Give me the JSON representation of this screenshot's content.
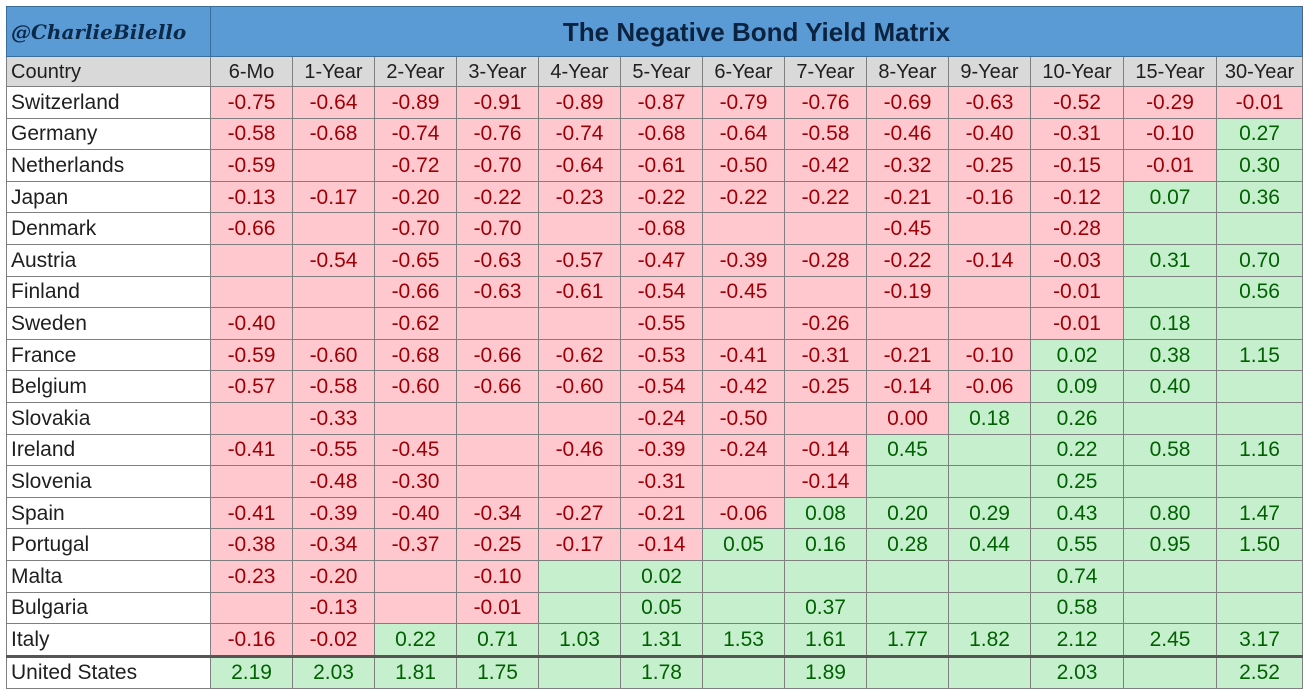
{
  "header": {
    "handle": "@CharlieBilello",
    "title": "The Negative Bond Yield Matrix"
  },
  "colors": {
    "title_bg": "#5b9bd5",
    "header_bg": "#d9d9d9",
    "negative_fill": "#ffc7ce",
    "negative_text": "#9c0006",
    "positive_fill": "#c6efce",
    "positive_text": "#006100"
  },
  "chart_data": {
    "type": "heatmap",
    "title": "The Negative Bond Yield Matrix",
    "row_header": "Country",
    "columns": [
      "6-Mo",
      "1-Year",
      "2-Year",
      "3-Year",
      "4-Year",
      "5-Year",
      "6-Year",
      "7-Year",
      "8-Year",
      "9-Year",
      "10-Year",
      "15-Year",
      "30-Year"
    ],
    "rows": [
      {
        "country": "Switzerland",
        "values": [
          "-0.75",
          "-0.64",
          "-0.89",
          "-0.91",
          "-0.89",
          "-0.87",
          "-0.79",
          "-0.76",
          "-0.69",
          "-0.63",
          "-0.52",
          "-0.29",
          "-0.01"
        ],
        "fills": [
          "n",
          "n",
          "n",
          "n",
          "n",
          "n",
          "n",
          "n",
          "n",
          "n",
          "n",
          "n",
          "n"
        ]
      },
      {
        "country": "Germany",
        "values": [
          "-0.58",
          "-0.68",
          "-0.74",
          "-0.76",
          "-0.74",
          "-0.68",
          "-0.64",
          "-0.58",
          "-0.46",
          "-0.40",
          "-0.31",
          "-0.10",
          "0.27"
        ],
        "fills": [
          "n",
          "n",
          "n",
          "n",
          "n",
          "n",
          "n",
          "n",
          "n",
          "n",
          "n",
          "n",
          "p"
        ]
      },
      {
        "country": "Netherlands",
        "values": [
          "-0.59",
          "",
          "-0.72",
          "-0.70",
          "-0.64",
          "-0.61",
          "-0.50",
          "-0.42",
          "-0.32",
          "-0.25",
          "-0.15",
          "-0.01",
          "0.30"
        ],
        "fills": [
          "n",
          "n",
          "n",
          "n",
          "n",
          "n",
          "n",
          "n",
          "n",
          "n",
          "n",
          "n",
          "p"
        ]
      },
      {
        "country": "Japan",
        "values": [
          "-0.13",
          "-0.17",
          "-0.20",
          "-0.22",
          "-0.23",
          "-0.22",
          "-0.22",
          "-0.22",
          "-0.21",
          "-0.16",
          "-0.12",
          "0.07",
          "0.36"
        ],
        "fills": [
          "n",
          "n",
          "n",
          "n",
          "n",
          "n",
          "n",
          "n",
          "n",
          "n",
          "n",
          "p",
          "p"
        ]
      },
      {
        "country": "Denmark",
        "values": [
          "-0.66",
          "",
          "-0.70",
          "-0.70",
          "",
          "-0.68",
          "",
          "",
          "-0.45",
          "",
          "-0.28",
          "",
          ""
        ],
        "fills": [
          "n",
          "n",
          "n",
          "n",
          "n",
          "n",
          "n",
          "n",
          "n",
          "n",
          "n",
          "p",
          "p"
        ]
      },
      {
        "country": "Austria",
        "values": [
          "",
          "-0.54",
          "-0.65",
          "-0.63",
          "-0.57",
          "-0.47",
          "-0.39",
          "-0.28",
          "-0.22",
          "-0.14",
          "-0.03",
          "0.31",
          "0.70"
        ],
        "fills": [
          "n",
          "n",
          "n",
          "n",
          "n",
          "n",
          "n",
          "n",
          "n",
          "n",
          "n",
          "p",
          "p"
        ]
      },
      {
        "country": "Finland",
        "values": [
          "",
          "",
          "-0.66",
          "-0.63",
          "-0.61",
          "-0.54",
          "-0.45",
          "",
          "-0.19",
          "",
          "-0.01",
          "",
          "0.56"
        ],
        "fills": [
          "n",
          "n",
          "n",
          "n",
          "n",
          "n",
          "n",
          "n",
          "n",
          "n",
          "n",
          "p",
          "p"
        ]
      },
      {
        "country": "Sweden",
        "values": [
          "-0.40",
          "",
          "-0.62",
          "",
          "",
          "-0.55",
          "",
          "-0.26",
          "",
          "",
          "-0.01",
          "0.18",
          ""
        ],
        "fills": [
          "n",
          "n",
          "n",
          "n",
          "n",
          "n",
          "n",
          "n",
          "n",
          "n",
          "n",
          "p",
          "p"
        ]
      },
      {
        "country": "France",
        "values": [
          "-0.59",
          "-0.60",
          "-0.68",
          "-0.66",
          "-0.62",
          "-0.53",
          "-0.41",
          "-0.31",
          "-0.21",
          "-0.10",
          "0.02",
          "0.38",
          "1.15"
        ],
        "fills": [
          "n",
          "n",
          "n",
          "n",
          "n",
          "n",
          "n",
          "n",
          "n",
          "n",
          "p",
          "p",
          "p"
        ]
      },
      {
        "country": "Belgium",
        "values": [
          "-0.57",
          "-0.58",
          "-0.60",
          "-0.66",
          "-0.60",
          "-0.54",
          "-0.42",
          "-0.25",
          "-0.14",
          "-0.06",
          "0.09",
          "0.40",
          ""
        ],
        "fills": [
          "n",
          "n",
          "n",
          "n",
          "n",
          "n",
          "n",
          "n",
          "n",
          "n",
          "p",
          "p",
          "p"
        ]
      },
      {
        "country": "Slovakia",
        "values": [
          "",
          "-0.33",
          "",
          "",
          "",
          "-0.24",
          "-0.50",
          "",
          "0.00",
          "0.18",
          "0.26",
          "",
          ""
        ],
        "fills": [
          "n",
          "n",
          "n",
          "n",
          "n",
          "n",
          "n",
          "n",
          "n",
          "p",
          "p",
          "p",
          "p"
        ]
      },
      {
        "country": "Ireland",
        "values": [
          "-0.41",
          "-0.55",
          "-0.45",
          "",
          "-0.46",
          "-0.39",
          "-0.24",
          "-0.14",
          "0.45",
          "",
          "0.22",
          "0.58",
          "1.16"
        ],
        "fills": [
          "n",
          "n",
          "n",
          "n",
          "n",
          "n",
          "n",
          "n",
          "p",
          "p",
          "p",
          "p",
          "p"
        ]
      },
      {
        "country": "Slovenia",
        "values": [
          "",
          "-0.48",
          "-0.30",
          "",
          "",
          "-0.31",
          "",
          "-0.14",
          "",
          "",
          "0.25",
          "",
          ""
        ],
        "fills": [
          "n",
          "n",
          "n",
          "n",
          "n",
          "n",
          "n",
          "n",
          "p",
          "p",
          "p",
          "p",
          "p"
        ]
      },
      {
        "country": "Spain",
        "values": [
          "-0.41",
          "-0.39",
          "-0.40",
          "-0.34",
          "-0.27",
          "-0.21",
          "-0.06",
          "0.08",
          "0.20",
          "0.29",
          "0.43",
          "0.80",
          "1.47"
        ],
        "fills": [
          "n",
          "n",
          "n",
          "n",
          "n",
          "n",
          "n",
          "p",
          "p",
          "p",
          "p",
          "p",
          "p"
        ]
      },
      {
        "country": "Portugal",
        "values": [
          "-0.38",
          "-0.34",
          "-0.37",
          "-0.25",
          "-0.17",
          "-0.14",
          "0.05",
          "0.16",
          "0.28",
          "0.44",
          "0.55",
          "0.95",
          "1.50"
        ],
        "fills": [
          "n",
          "n",
          "n",
          "n",
          "n",
          "n",
          "p",
          "p",
          "p",
          "p",
          "p",
          "p",
          "p"
        ]
      },
      {
        "country": "Malta",
        "values": [
          "-0.23",
          "-0.20",
          "",
          "-0.10",
          "",
          "0.02",
          "",
          "",
          "",
          "",
          "0.74",
          "",
          ""
        ],
        "fills": [
          "n",
          "n",
          "n",
          "n",
          "p",
          "p",
          "p",
          "p",
          "p",
          "p",
          "p",
          "p",
          "p"
        ]
      },
      {
        "country": "Bulgaria",
        "values": [
          "",
          "-0.13",
          "",
          "-0.01",
          "",
          "0.05",
          "",
          "0.37",
          "",
          "",
          "0.58",
          "",
          ""
        ],
        "fills": [
          "n",
          "n",
          "n",
          "n",
          "p",
          "p",
          "p",
          "p",
          "p",
          "p",
          "p",
          "p",
          "p"
        ]
      },
      {
        "country": "Italy",
        "values": [
          "-0.16",
          "-0.02",
          "0.22",
          "0.71",
          "1.03",
          "1.31",
          "1.53",
          "1.61",
          "1.77",
          "1.82",
          "2.12",
          "2.45",
          "3.17"
        ],
        "fills": [
          "n",
          "n",
          "p",
          "p",
          "p",
          "p",
          "p",
          "p",
          "p",
          "p",
          "p",
          "p",
          "p"
        ]
      },
      {
        "country": "United States",
        "values": [
          "2.19",
          "2.03",
          "1.81",
          "1.75",
          "",
          "1.78",
          "",
          "1.89",
          "",
          "",
          "2.03",
          "",
          "2.52"
        ],
        "fills": [
          "p",
          "p",
          "p",
          "p",
          "p",
          "p",
          "p",
          "p",
          "p",
          "p",
          "p",
          "p",
          "p"
        ]
      }
    ]
  }
}
